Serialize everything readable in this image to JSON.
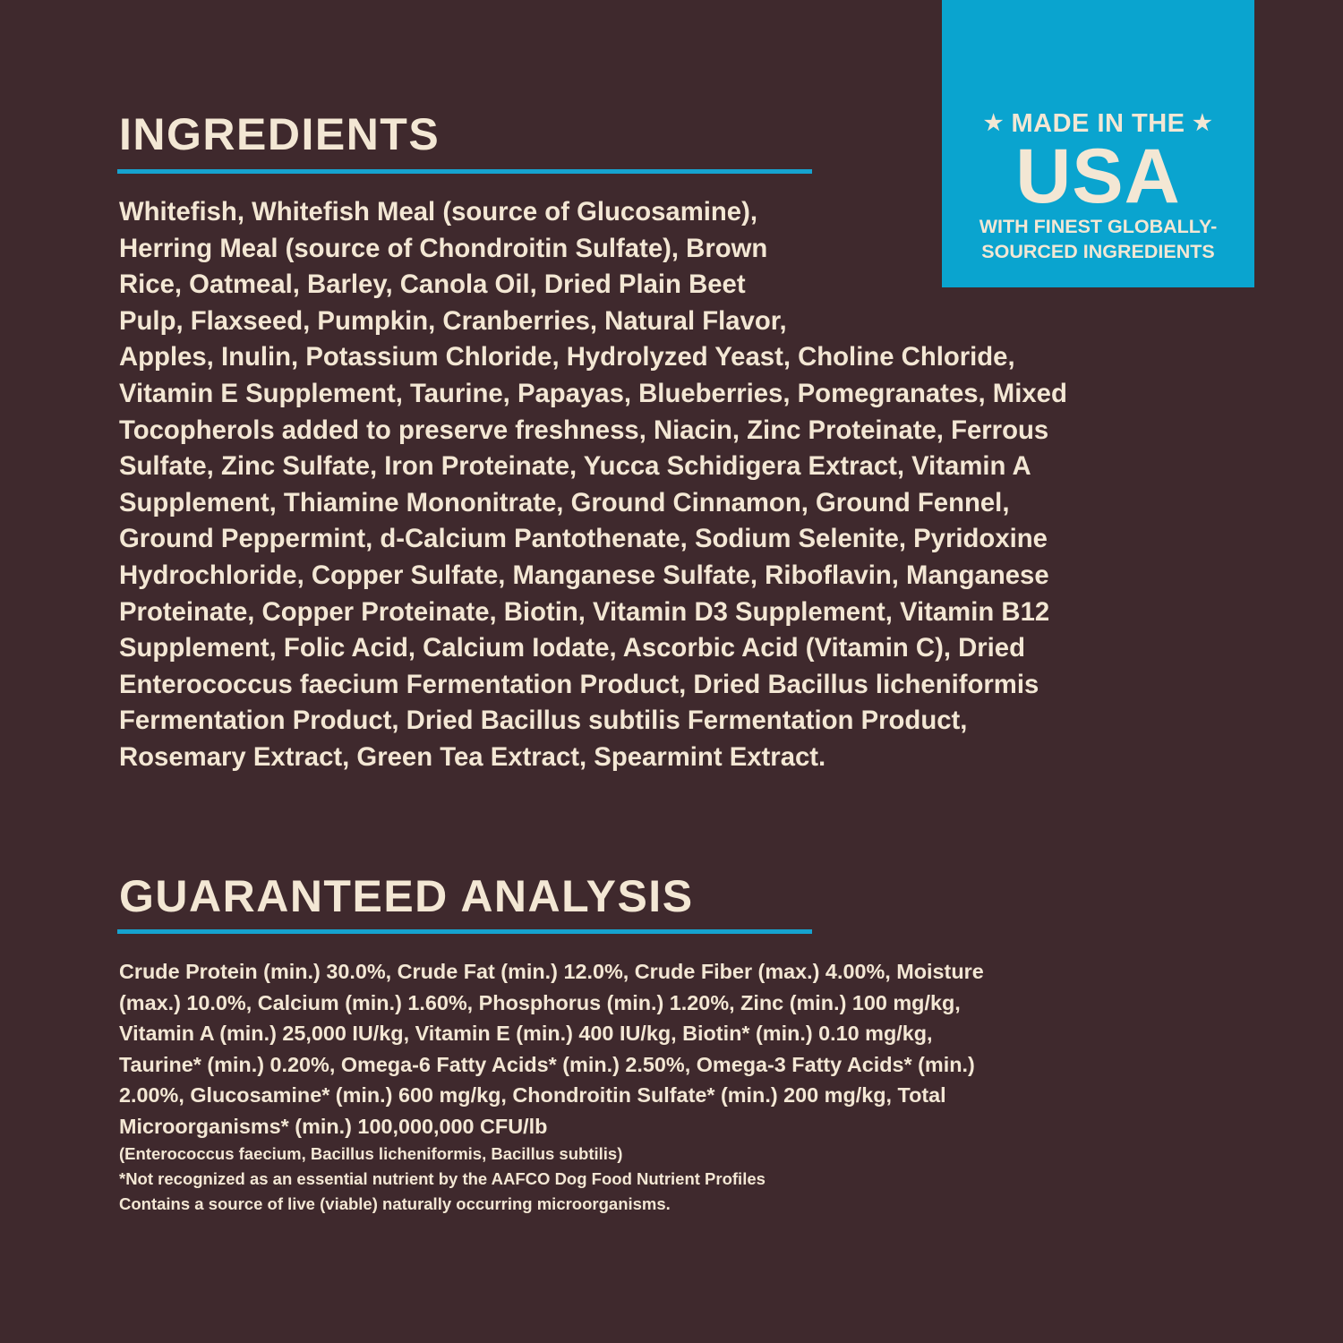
{
  "colors": {
    "background": "#3f292d",
    "accent": "#0aa4cf",
    "text": "#f3e7d4"
  },
  "badge": {
    "star_icon": "★",
    "top": "MADE IN THE",
    "main": "USA",
    "sub_lines": [
      "WITH FINEST GLOBALLY-",
      "SOURCED INGREDIENTS"
    ]
  },
  "ingredients": {
    "heading": "INGREDIENTS",
    "lines": [
      "Whitefish, Whitefish Meal (source of Glucosamine),",
      "Herring Meal (source of Chondroitin Sulfate), Brown",
      "Rice, Oatmeal, Barley, Canola Oil, Dried Plain Beet",
      "Pulp, Flaxseed, Pumpkin, Cranberries, Natural Flavor,",
      "Apples, Inulin, Potassium Chloride, Hydrolyzed Yeast, Choline Chloride,",
      "Vitamin E Supplement, Taurine, Papayas, Blueberries, Pomegranates, Mixed",
      "Tocopherols added to preserve freshness, Niacin, Zinc Proteinate, Ferrous",
      "Sulfate, Zinc Sulfate, Iron Proteinate, Yucca Schidigera Extract, Vitamin A",
      "Supplement, Thiamine Mononitrate, Ground Cinnamon, Ground Fennel,",
      "Ground Peppermint, d-Calcium Pantothenate, Sodium Selenite, Pyridoxine",
      "Hydrochloride, Copper Sulfate, Manganese Sulfate, Riboflavin, Manganese",
      "Proteinate, Copper Proteinate, Biotin, Vitamin D3 Supplement, Vitamin B12",
      "Supplement, Folic Acid, Calcium Iodate, Ascorbic Acid (Vitamin C), Dried",
      "Enterococcus faecium Fermentation Product, Dried Bacillus licheniformis",
      "Fermentation Product, Dried Bacillus subtilis Fermentation Product,",
      "Rosemary Extract, Green Tea Extract, Spearmint Extract."
    ]
  },
  "analysis": {
    "heading": "GUARANTEED ANALYSIS",
    "lines": [
      "Crude Protein (min.) 30.0%, Crude Fat (min.) 12.0%, Crude Fiber (max.) 4.00%, Moisture",
      "(max.) 10.0%, Calcium (min.) 1.60%, Phosphorus (min.) 1.20%, Zinc (min.) 100 mg/kg,",
      "Vitamin A (min.) 25,000 IU/kg, Vitamin E (min.) 400 IU/kg, Biotin* (min.) 0.10 mg/kg,",
      "Taurine* (min.) 0.20%, Omega-6 Fatty Acids* (min.) 2.50%, Omega-3 Fatty Acids* (min.)",
      "2.00%, Glucosamine* (min.) 600 mg/kg, Chondroitin Sulfate* (min.) 200 mg/kg, Total",
      "Microorganisms* (min.) 100,000,000 CFU/lb"
    ],
    "footnotes": [
      "(Enterococcus faecium, Bacillus licheniformis, Bacillus subtilis)",
      "*Not recognized as an essential nutrient by the AAFCO Dog Food Nutrient Profiles",
      "Contains a source of live (viable) naturally occurring microorganisms."
    ]
  }
}
